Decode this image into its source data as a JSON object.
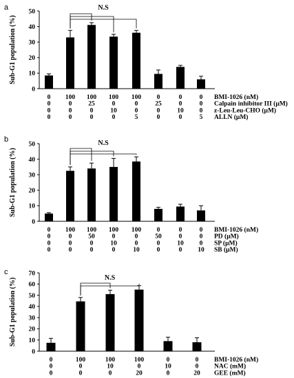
{
  "chart_data": [
    {
      "type": "bar",
      "panel": "a",
      "ylabel": "Sub-G1 population (%)",
      "ylim": [
        0,
        50
      ],
      "yticks": [
        0,
        10,
        20,
        30,
        40,
        50
      ],
      "values": [
        8.5,
        33,
        41,
        33.5,
        36,
        9.5,
        14,
        6
      ],
      "errors": [
        1,
        4.5,
        1.5,
        1.5,
        1.5,
        2.5,
        1,
        2
      ],
      "significance": "N.S",
      "conditions": [
        {
          "label": "BMI-1026 (nM)",
          "values": [
            "0",
            "100",
            "100",
            "100",
            "100",
            "0",
            "0",
            "0"
          ]
        },
        {
          "label": "Calpain inhibitor III (μM)",
          "values": [
            "0",
            "0",
            "25",
            "0",
            "0",
            "25",
            "0",
            "0"
          ]
        },
        {
          "label": "z-Leu-Leu-CHO (μM)",
          "values": [
            "0",
            "0",
            "0",
            "10",
            "0",
            "0",
            "10",
            "0"
          ]
        },
        {
          "label": "ALLN (μM)",
          "values": [
            "0",
            "0",
            "0",
            "0",
            "5",
            "0",
            "0",
            "5"
          ]
        }
      ]
    },
    {
      "type": "bar",
      "panel": "b",
      "ylabel": "Sub-G1 population (%)",
      "ylim": [
        0,
        50
      ],
      "yticks": [
        0,
        10,
        20,
        30,
        40,
        50
      ],
      "values": [
        5,
        32.5,
        34,
        35,
        38.5,
        8,
        9.5,
        7
      ],
      "errors": [
        0.5,
        2.5,
        3.5,
        5.5,
        3,
        1,
        1.5,
        3
      ],
      "significance": "N.S",
      "conditions": [
        {
          "label": "BMI-1026 (nM)",
          "values": [
            "0",
            "100",
            "100",
            "100",
            "100",
            "0",
            "0",
            "0"
          ]
        },
        {
          "label": "PD (μM)",
          "values": [
            "0",
            "0",
            "50",
            "0",
            "0",
            "50",
            "0",
            "0"
          ]
        },
        {
          "label": "SP (μM)",
          "values": [
            "0",
            "0",
            "0",
            "10",
            "0",
            "0",
            "10",
            "0"
          ]
        },
        {
          "label": "SB (μM)",
          "values": [
            "0",
            "0",
            "0",
            "0",
            "10",
            "0",
            "0",
            "10"
          ]
        }
      ]
    },
    {
      "type": "bar",
      "panel": "c",
      "ylabel": "Sub-G1 population (%)",
      "ylim": [
        0,
        70
      ],
      "yticks": [
        0,
        10,
        20,
        30,
        40,
        50,
        60,
        70
      ],
      "values": [
        7.5,
        44.5,
        51,
        55,
        9,
        8
      ],
      "errors": [
        4,
        3.5,
        3.5,
        3.5,
        3.5,
        4
      ],
      "significance": "N.S",
      "conditions": [
        {
          "label": "BMI-1026 (nM)",
          "values": [
            "0",
            "100",
            "100",
            "100",
            "0",
            "0"
          ]
        },
        {
          "label": "NAC (mM)",
          "values": [
            "0",
            "0",
            "10",
            "0",
            "10",
            "0"
          ]
        },
        {
          "label": "GEE (mM)",
          "values": [
            "0",
            "0",
            "0",
            "20",
            "0",
            "20"
          ]
        }
      ]
    }
  ]
}
